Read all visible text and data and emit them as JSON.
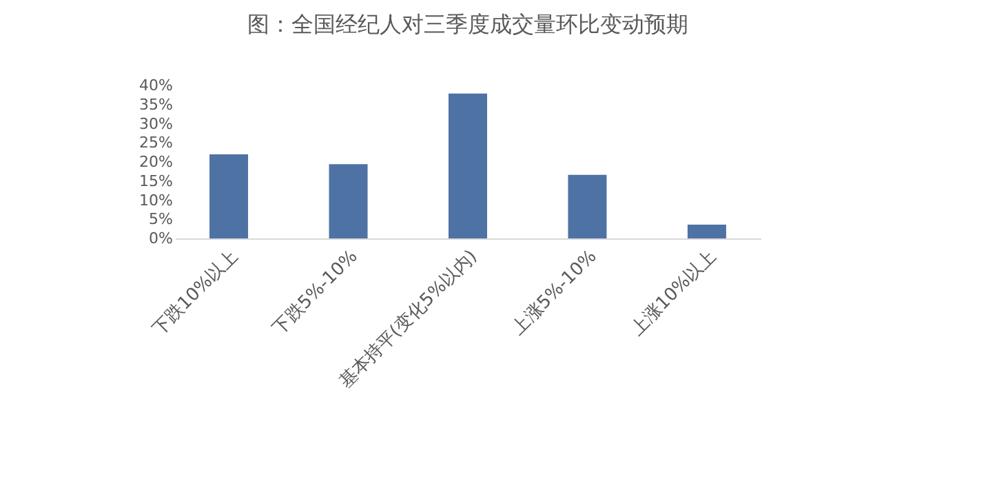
{
  "chart_data": {
    "type": "bar",
    "title": "图：全国经纪人对三季度成交量环比变动预期",
    "categories": [
      "下跌10%以上",
      "下跌5%-10%",
      "基本持平(变化5%以内)",
      "上涨5%-10%",
      "上涨10%以上"
    ],
    "values": [
      22.0,
      19.4,
      37.9,
      16.6,
      3.6
    ],
    "color": "#4e72a4",
    "ylim": [
      0,
      40
    ],
    "yticks": [
      {
        "value": 0,
        "label": "0%"
      },
      {
        "value": 5,
        "label": "5%"
      },
      {
        "value": 10,
        "label": "10%"
      },
      {
        "value": 15,
        "label": "15%"
      },
      {
        "value": 20,
        "label": "20%"
      },
      {
        "value": 25,
        "label": "25%"
      },
      {
        "value": 30,
        "label": "30%"
      },
      {
        "value": 35,
        "label": "35%"
      },
      {
        "value": 40,
        "label": "40%"
      }
    ],
    "grid": false
  }
}
